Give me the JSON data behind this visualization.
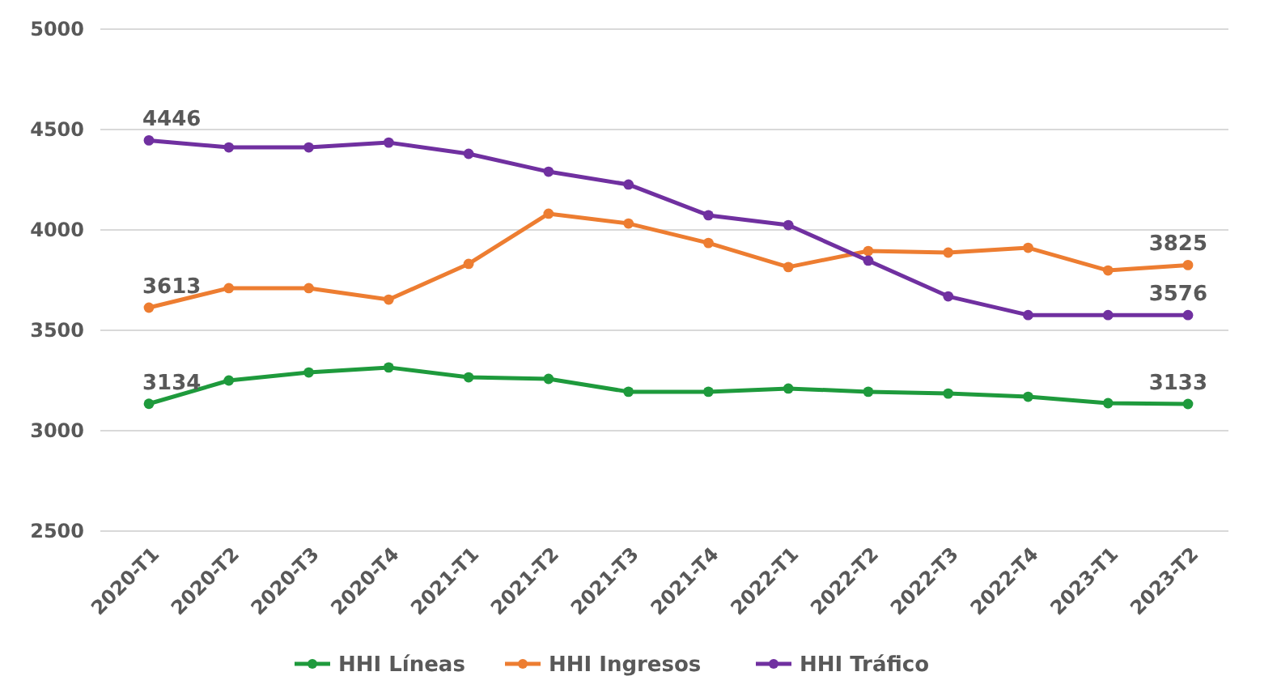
{
  "chart_data": {
    "type": "line",
    "categories": [
      "2020-T1",
      "2020-T2",
      "2020-T3",
      "2020-T4",
      "2021-T1",
      "2021-T2",
      "2021-T3",
      "2021-T4",
      "2022-T1",
      "2022-T2",
      "2022-T3",
      "2022-T4",
      "2023-T1",
      "2023-T2"
    ],
    "series": [
      {
        "name": "HHI Líneas",
        "color": "#1e9a3c",
        "values": [
          3134,
          3250,
          3290,
          3315,
          3266,
          3258,
          3194,
          3194,
          3210,
          3194,
          3185,
          3169,
          3137,
          3133
        ],
        "value_labels": [
          "3134",
          null,
          null,
          null,
          null,
          null,
          null,
          null,
          null,
          null,
          null,
          null,
          null,
          "3133"
        ]
      },
      {
        "name": "HHI Ingresos",
        "color": "#ed7d31",
        "values": [
          3613,
          3710,
          3710,
          3653,
          3831,
          4081,
          4032,
          3935,
          3815,
          3895,
          3887,
          3911,
          3798,
          3825
        ],
        "value_labels": [
          "3613",
          null,
          null,
          null,
          null,
          null,
          null,
          null,
          null,
          null,
          null,
          null,
          null,
          "3825"
        ]
      },
      {
        "name": "HHI Tráfico",
        "color": "#7030a0",
        "values": [
          4446,
          4411,
          4411,
          4435,
          4379,
          4290,
          4226,
          4073,
          4024,
          3847,
          3669,
          3576,
          3576,
          3576
        ],
        "value_labels": [
          "4446",
          null,
          null,
          null,
          null,
          null,
          null,
          null,
          null,
          null,
          null,
          null,
          null,
          "3576"
        ]
      }
    ],
    "ylim": [
      2500,
      5000
    ],
    "yticks": [
      2500,
      3000,
      3500,
      4000,
      4500,
      5000
    ],
    "grid": "y",
    "legend": "bottom",
    "marker": "circle",
    "line_style": "solid"
  }
}
